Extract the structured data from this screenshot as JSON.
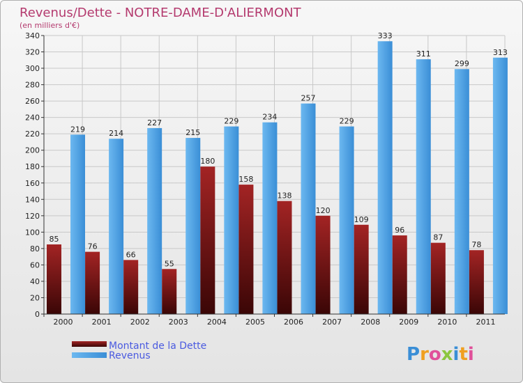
{
  "chart_data": {
    "type": "bar",
    "title": "Revenus/Dette - NOTRE-DAME-D'ALIERMONT",
    "subtitle": "(en milliers d'€)",
    "categories": [
      "2000",
      "2001",
      "2002",
      "2003",
      "2004",
      "2005",
      "2006",
      "2007",
      "2008",
      "2009",
      "2010",
      "2011"
    ],
    "series": [
      {
        "name": "Montant de la Dette",
        "color": "#8b1c1c",
        "values": [
          85,
          76,
          66,
          55,
          180,
          158,
          138,
          120,
          109,
          96,
          87,
          78
        ]
      },
      {
        "name": "Revenus",
        "color": "#4a9de0",
        "values": [
          219,
          214,
          227,
          215,
          229,
          234,
          257,
          229,
          333,
          311,
          299,
          313
        ]
      }
    ],
    "ylim": [
      0,
      340
    ],
    "ytick_step": 20,
    "grid": true,
    "legend_position": "bottom-left"
  },
  "logo": {
    "text": "Proxiti",
    "letters": [
      "P",
      "r",
      "o",
      "x",
      "i",
      "t",
      "i"
    ]
  }
}
